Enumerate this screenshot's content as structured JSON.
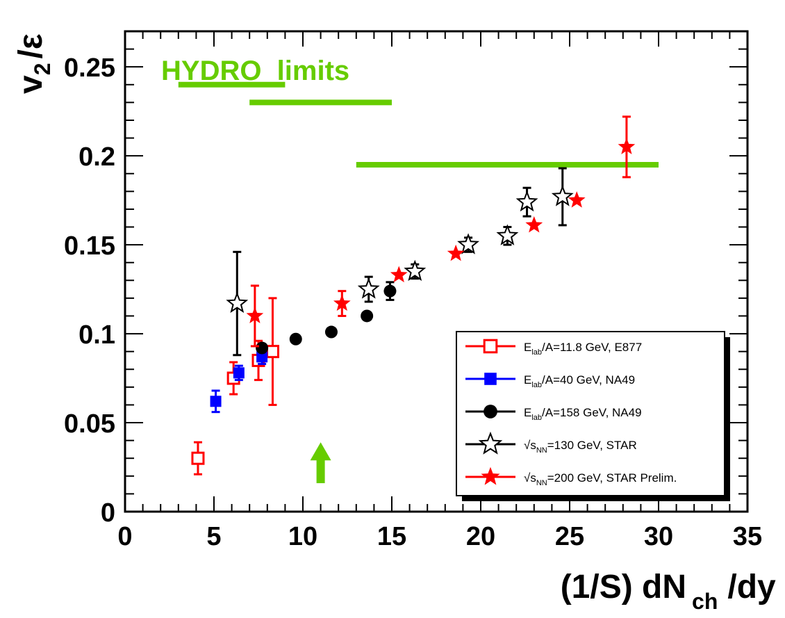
{
  "chart_data": {
    "type": "scatter",
    "ylabel": {
      "main": "v",
      "sub": "2",
      "rest": "/ε"
    },
    "xlabel": {
      "main": "(1/S) dN",
      "sub": "ch",
      "rest": "/dy"
    },
    "xlim": [
      0,
      35
    ],
    "ylim": [
      0,
      0.27
    ],
    "x_ticks": [
      0,
      5,
      10,
      15,
      20,
      25,
      30,
      35
    ],
    "x_tick_labels": [
      "0",
      "5",
      "10",
      "15",
      "20",
      "25",
      "30",
      "35"
    ],
    "y_ticks": [
      0,
      0.05,
      0.1,
      0.15,
      0.2,
      0.25
    ],
    "y_tick_labels": [
      "0",
      "0.05",
      "0.1",
      "0.15",
      "0.2",
      "0.25"
    ],
    "grid": false,
    "legend_position": "bottom-right",
    "annotation": {
      "text": "HYDRO  limits",
      "color": "#66cc00",
      "hydro_limits": [
        {
          "x": [
            3,
            9
          ],
          "y": 0.24
        },
        {
          "x": [
            7,
            15
          ],
          "y": 0.23
        },
        {
          "x": [
            13,
            30
          ],
          "y": 0.195
        }
      ],
      "arrow": {
        "x": 11,
        "y_from": 0.016,
        "y_to": 0.039
      }
    },
    "series": [
      {
        "name": "E_lab/A=11.8 GeV, E877",
        "legend": {
          "pre": "E",
          "sub": "lab",
          "post": "/A=11.8 GeV, E877"
        },
        "marker": "open-square",
        "color": "#ff0000",
        "points": [
          {
            "x": 4.1,
            "y": 0.03,
            "err": 0.009
          },
          {
            "x": 6.1,
            "y": 0.075,
            "err": 0.009
          },
          {
            "x": 7.5,
            "y": 0.085,
            "err": 0.011
          },
          {
            "x": 8.3,
            "y": 0.09,
            "err": 0.03
          }
        ]
      },
      {
        "name": "E_lab/A=40 GeV, NA49",
        "legend": {
          "pre": "E",
          "sub": "lab",
          "post": "/A=40 GeV, NA49"
        },
        "marker": "filled-square",
        "color": "#0000ff",
        "points": [
          {
            "x": 5.1,
            "y": 0.062,
            "err": 0.006
          },
          {
            "x": 6.4,
            "y": 0.078,
            "err": 0.004
          },
          {
            "x": 7.7,
            "y": 0.087,
            "err": 0.004
          }
        ]
      },
      {
        "name": "E_lab/A=158 GeV, NA49",
        "legend": {
          "pre": "E",
          "sub": "lab",
          "post": "/A=158 GeV, NA49"
        },
        "marker": "filled-circle",
        "color": "#000000",
        "points": [
          {
            "x": 7.7,
            "y": 0.092,
            "err": 0
          },
          {
            "x": 9.6,
            "y": 0.097,
            "err": 0
          },
          {
            "x": 11.6,
            "y": 0.101,
            "err": 0
          },
          {
            "x": 13.6,
            "y": 0.11,
            "err": 0
          },
          {
            "x": 14.9,
            "y": 0.124,
            "err": 0.005
          }
        ]
      },
      {
        "name": "√s_NN=130 GeV, STAR",
        "legend": {
          "pre": "√s",
          "sub": "NN",
          "post": "=130 GeV, STAR"
        },
        "marker": "open-star",
        "color": "#000000",
        "points": [
          {
            "x": 6.3,
            "y": 0.117,
            "err": 0.029
          },
          {
            "x": 13.7,
            "y": 0.125,
            "err": 0.007
          },
          {
            "x": 16.3,
            "y": 0.135,
            "err": 0.004
          },
          {
            "x": 19.3,
            "y": 0.15,
            "err": 0.004
          },
          {
            "x": 21.5,
            "y": 0.155,
            "err": 0.005
          },
          {
            "x": 22.6,
            "y": 0.174,
            "err": 0.008
          },
          {
            "x": 24.6,
            "y": 0.177,
            "err": 0.016
          }
        ]
      },
      {
        "name": "√s_NN=200 GeV, STAR Prelim.",
        "legend": {
          "pre": "√s",
          "sub": "NN",
          "post": "=200 GeV, STAR Prelim."
        },
        "marker": "filled-star",
        "color": "#ff0000",
        "points": [
          {
            "x": 7.3,
            "y": 0.11,
            "err": 0.017
          },
          {
            "x": 12.2,
            "y": 0.117,
            "err": 0.007
          },
          {
            "x": 15.4,
            "y": 0.133,
            "err": 0
          },
          {
            "x": 18.6,
            "y": 0.145,
            "err": 0
          },
          {
            "x": 23.0,
            "y": 0.161,
            "err": 0
          },
          {
            "x": 25.4,
            "y": 0.175,
            "err": 0
          },
          {
            "x": 28.2,
            "y": 0.205,
            "err": 0.017
          }
        ]
      }
    ]
  }
}
